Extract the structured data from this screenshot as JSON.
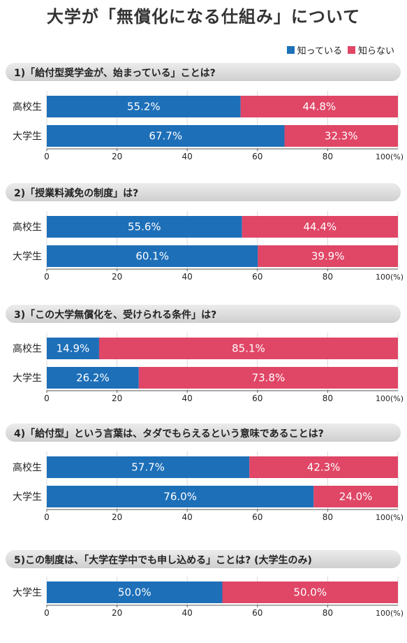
{
  "title": "大学が「無償化になる仕組み」について",
  "legend": [
    {
      "label": "知っている",
      "color": "#1d6fb8"
    },
    {
      "label": "知らない",
      "color": "#e04666"
    }
  ],
  "axis_unit": "100(%)",
  "chart_data": [
    {
      "type": "bar",
      "stacked": true,
      "orientation": "horizontal",
      "title": "1)「給付型奨学金が、始まっている」ことは?",
      "categories": [
        "高校生",
        "大学生"
      ],
      "series": [
        {
          "name": "知っている",
          "values": [
            55.2,
            67.7
          ],
          "labels": [
            "55.2%",
            "67.7%"
          ]
        },
        {
          "name": "知らない",
          "values": [
            44.8,
            32.3
          ],
          "labels": [
            "44.8%",
            "32.3%"
          ]
        }
      ],
      "xlim": [
        0,
        100
      ],
      "xticks": [
        "0",
        "20",
        "40",
        "60",
        "80"
      ]
    },
    {
      "type": "bar",
      "stacked": true,
      "orientation": "horizontal",
      "title": "2)「授業料減免の制度」は?",
      "categories": [
        "高校生",
        "大学生"
      ],
      "series": [
        {
          "name": "知っている",
          "values": [
            55.6,
            60.1
          ],
          "labels": [
            "55.6%",
            "60.1%"
          ]
        },
        {
          "name": "知らない",
          "values": [
            44.4,
            39.9
          ],
          "labels": [
            "44.4%",
            "39.9%"
          ]
        }
      ],
      "xlim": [
        0,
        100
      ],
      "xticks": [
        "0",
        "20",
        "40",
        "60",
        "80"
      ]
    },
    {
      "type": "bar",
      "stacked": true,
      "orientation": "horizontal",
      "title": "3)「この大学無償化を、受けられる条件」は?",
      "categories": [
        "高校生",
        "大学生"
      ],
      "series": [
        {
          "name": "知っている",
          "values": [
            14.9,
            26.2
          ],
          "labels": [
            "14.9%",
            "26.2%"
          ]
        },
        {
          "name": "知らない",
          "values": [
            85.1,
            73.8
          ],
          "labels": [
            "85.1%",
            "73.8%"
          ]
        }
      ],
      "xlim": [
        0,
        100
      ],
      "xticks": [
        "0",
        "20",
        "40",
        "60",
        "80"
      ]
    },
    {
      "type": "bar",
      "stacked": true,
      "orientation": "horizontal",
      "title": "4)「給付型」という言葉は、タダでもらえるという意味であることは?",
      "categories": [
        "高校生",
        "大学生"
      ],
      "series": [
        {
          "name": "知っている",
          "values": [
            57.7,
            76.0
          ],
          "labels": [
            "57.7%",
            "76.0%"
          ]
        },
        {
          "name": "知らない",
          "values": [
            42.3,
            24.0
          ],
          "labels": [
            "42.3%",
            "24.0%"
          ]
        }
      ],
      "xlim": [
        0,
        100
      ],
      "xticks": [
        "0",
        "20",
        "40",
        "60",
        "80"
      ]
    },
    {
      "type": "bar",
      "stacked": true,
      "orientation": "horizontal",
      "title": "5)この制度は、「大学在学中でも申し込める」ことは? (大学生のみ)",
      "categories": [
        "大学生"
      ],
      "series": [
        {
          "name": "知っている",
          "values": [
            50.0
          ],
          "labels": [
            "50.0%"
          ]
        },
        {
          "name": "知らない",
          "values": [
            50.0
          ],
          "labels": [
            "50.0%"
          ]
        }
      ],
      "xlim": [
        0,
        100
      ],
      "xticks": [
        "0",
        "20",
        "40",
        "60",
        "80"
      ]
    }
  ]
}
